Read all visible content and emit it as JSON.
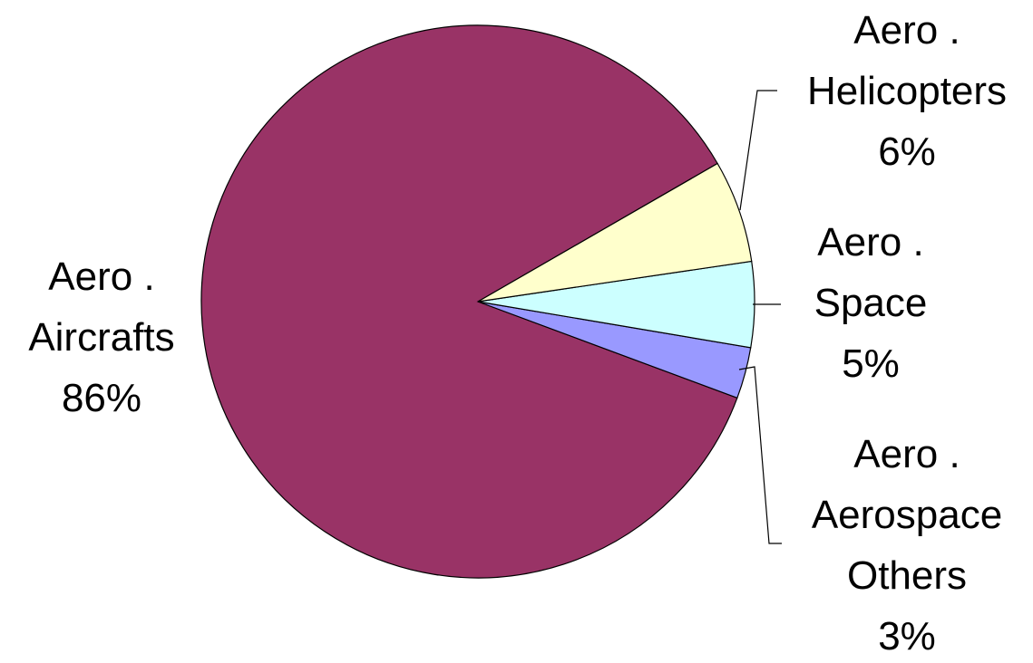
{
  "chart_data": {
    "type": "pie",
    "slices": [
      {
        "lines": [
          "Aero .",
          "Aircrafts",
          "86%"
        ],
        "value": 86,
        "color": "#993366"
      },
      {
        "lines": [
          "Aero .",
          "Helicopters",
          "6%"
        ],
        "value": 6,
        "color": "#FFFFCC"
      },
      {
        "lines": [
          "Aero .",
          "Space",
          "5%"
        ],
        "value": 5,
        "color": "#CCFFFF"
      },
      {
        "lines": [
          "Aero .",
          "Aerospace",
          "Others",
          "3%"
        ],
        "value": 3,
        "color": "#9999FF"
      }
    ],
    "legend": "none",
    "start_angle_deg": -30
  }
}
